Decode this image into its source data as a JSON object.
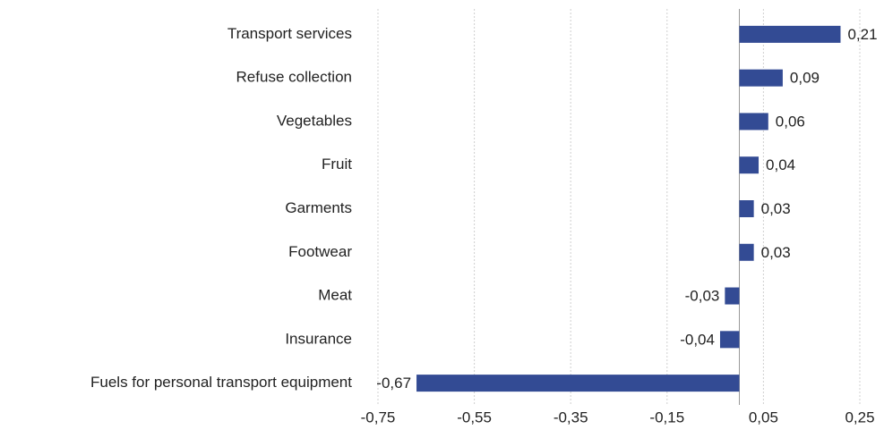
{
  "chart_data": {
    "type": "barh",
    "categories": [
      "Transport services",
      "Refuse collection",
      "Vegetables",
      "Fruit",
      "Garments",
      "Footwear",
      "Meat",
      "Insurance",
      "Fuels for personal transport equipment"
    ],
    "values": [
      0.21,
      0.09,
      0.06,
      0.04,
      0.03,
      0.03,
      -0.03,
      -0.04,
      -0.67
    ],
    "value_labels": [
      "0,21",
      "0,09",
      "0,06",
      "0,04",
      "0,03",
      "0,03",
      "-0,03",
      "-0,04",
      "-0,67"
    ],
    "color": "#334b94",
    "xlim": [
      -0.75,
      0.25
    ],
    "xticks": [
      {
        "value": -0.75,
        "label": "-0,75"
      },
      {
        "value": -0.55,
        "label": "-0,55"
      },
      {
        "value": -0.35,
        "label": "-0,35"
      },
      {
        "value": -0.15,
        "label": "-0,15"
      },
      {
        "value": 0.05,
        "label": "0,05"
      },
      {
        "value": 0.25,
        "label": "0,25"
      }
    ],
    "grid": true
  }
}
